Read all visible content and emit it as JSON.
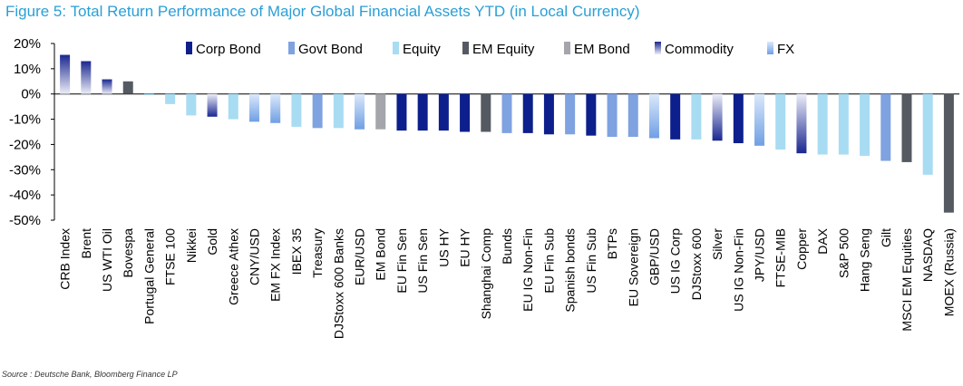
{
  "title": "Figure 5: Total Return Performance of Major Global Financial Assets YTD (in Local Currency)",
  "source": "Source : Deutsche Bank, Bloomberg Finance LP",
  "colors": {
    "Corp Bond": "#0d1f8c",
    "Govt Bond": "#7fa2e0",
    "Equity": "#a8dcf2",
    "EM Equity": "#555a62",
    "EM Bond": "#a4a6ab",
    "Commodity": "#1a2790",
    "FX": "#86b4ea"
  },
  "chart_data": {
    "type": "bar",
    "title": "Figure 5: Total Return Performance of Major Global Financial Assets YTD (in Local Currency)",
    "ylim": [
      -50,
      20
    ],
    "yticks": [
      "20%",
      "10%",
      "0%",
      "-10%",
      "-20%",
      "-30%",
      "-40%",
      "-50%"
    ],
    "ytick_values": [
      20,
      10,
      0,
      -10,
      -20,
      -30,
      -40,
      -50
    ],
    "legend": [
      "Corp Bond",
      "Govt Bond",
      "Equity",
      "EM Equity",
      "EM Bond",
      "Commodity",
      "FX"
    ],
    "legend_position": "top",
    "categories": [
      "CRB Index",
      "Brent",
      "US WTI Oil",
      "Bovespa",
      "Portugal General",
      "FTSE 100",
      "Nikkei",
      "Gold",
      "Greece Athex",
      "CNY/USD",
      "EM FX Index",
      "IBEX 35",
      "Treasury",
      "DJStoxx 600 Banks",
      "EUR/USD",
      "EM Bond",
      "EU Fin Sen",
      "US Fin Sen",
      "US HY",
      "EU HY",
      "Shanghai Comp",
      "Bunds",
      "EU IG Non-Fin",
      "EU Fin Sub",
      "Spanish bonds",
      "US Fin Sub",
      "BTPs",
      "EU Sovereign",
      "GBP/USD",
      "US IG Corp",
      "DJStoxx 600",
      "Silver",
      "US IG Non-Fin",
      "JPY/USD",
      "FTSE-MIB",
      "Copper",
      "DAX",
      "S&P 500",
      "Hang Seng",
      "Gilt",
      "MSCI EM Equities",
      "NASDAQ",
      "MOEX (Russia)"
    ],
    "values": [
      15.5,
      13,
      5.8,
      5,
      -0.5,
      -4,
      -8.5,
      -9,
      -10,
      -11,
      -11.5,
      -13,
      -13.5,
      -13.5,
      -14,
      -14,
      -14.5,
      -14.5,
      -14.5,
      -15,
      -15,
      -15.5,
      -15.5,
      -16,
      -16,
      -16.5,
      -17,
      -17,
      -17.5,
      -18,
      -18,
      -18.5,
      -19.5,
      -20.5,
      -22,
      -23.5,
      -24,
      -24,
      -24.5,
      -26.5,
      -27,
      -32,
      -47
    ],
    "groups": [
      "Commodity",
      "Commodity",
      "Commodity",
      "EM Equity",
      "Equity",
      "Equity",
      "Equity",
      "Commodity",
      "Equity",
      "FX",
      "FX",
      "Equity",
      "Govt Bond",
      "Equity",
      "FX",
      "EM Bond",
      "Corp Bond",
      "Corp Bond",
      "Corp Bond",
      "Corp Bond",
      "EM Equity",
      "Govt Bond",
      "Corp Bond",
      "Corp Bond",
      "Govt Bond",
      "Corp Bond",
      "Govt Bond",
      "Govt Bond",
      "FX",
      "Corp Bond",
      "Equity",
      "Commodity",
      "Corp Bond",
      "FX",
      "Equity",
      "Commodity",
      "Equity",
      "Equity",
      "Equity",
      "Govt Bond",
      "EM Equity",
      "Equity",
      "EM Equity"
    ]
  }
}
